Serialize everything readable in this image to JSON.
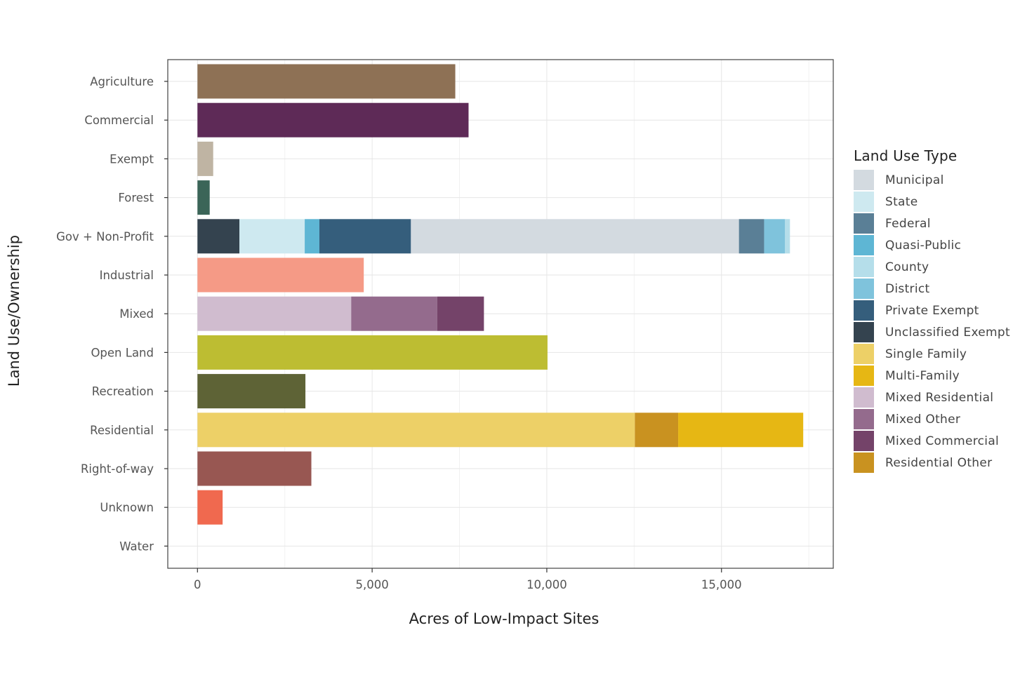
{
  "chart_data": {
    "type": "bar",
    "orientation": "horizontal",
    "stacked": true,
    "xlabel": "Acres of Low-Impact Sites",
    "ylabel": "Land Use/Ownership",
    "xlim": [
      -850,
      18200
    ],
    "xticks": [
      0,
      5000,
      10000,
      15000
    ],
    "xtick_labels": [
      "0",
      "5,000",
      "10,000",
      "15,000"
    ],
    "grid": true,
    "legend_placement": "right",
    "legend_title": "Land Use Type",
    "categories": [
      "Agriculture",
      "Commercial",
      "Exempt",
      "Forest",
      "Gov + Non-Profit",
      "Industrial",
      "Mixed",
      "Open Land",
      "Recreation",
      "Residential",
      "Right-of-way",
      "Unknown",
      "Water"
    ],
    "bars": [
      {
        "category": "Agriculture",
        "segments": [
          {
            "value": 7380,
            "color": "#8E7155"
          }
        ]
      },
      {
        "category": "Commercial",
        "segments": [
          {
            "value": 7760,
            "color": "#5E2A57"
          }
        ]
      },
      {
        "category": "Exempt",
        "segments": [
          {
            "value": 450,
            "color": "#BFB4A3"
          }
        ]
      },
      {
        "category": "Forest",
        "segments": [
          {
            "value": 350,
            "color": "#3B6558"
          }
        ]
      },
      {
        "category": "Gov + Non-Profit",
        "segments": [
          {
            "name": "Unclassified Exempt",
            "value": 1200,
            "color": "#34434F"
          },
          {
            "name": "State",
            "value": 1870,
            "color": "#CEE9F0"
          },
          {
            "name": "Quasi-Public",
            "value": 420,
            "color": "#5EB6D4"
          },
          {
            "name": "Private Exempt",
            "value": 2620,
            "color": "#355E7C"
          },
          {
            "name": "Municipal",
            "value": 9390,
            "color": "#D3DAE0"
          },
          {
            "name": "Federal",
            "value": 720,
            "color": "#5A7F96"
          },
          {
            "name": "District",
            "value": 600,
            "color": "#7FC3DC"
          },
          {
            "name": "County",
            "value": 140,
            "color": "#B5DEEA"
          }
        ]
      },
      {
        "category": "Industrial",
        "segments": [
          {
            "value": 4760,
            "color": "#F59A86"
          }
        ]
      },
      {
        "category": "Mixed",
        "segments": [
          {
            "name": "Mixed Residential",
            "value": 4400,
            "color": "#D0BCCF"
          },
          {
            "name": "Mixed Other",
            "value": 2460,
            "color": "#946B8D"
          },
          {
            "name": "Mixed Commercial",
            "value": 1340,
            "color": "#744369"
          }
        ]
      },
      {
        "category": "Open Land",
        "segments": [
          {
            "value": 10020,
            "color": "#BDBD32"
          }
        ]
      },
      {
        "category": "Recreation",
        "segments": [
          {
            "value": 3090,
            "color": "#5E6336"
          }
        ]
      },
      {
        "category": "Residential",
        "segments": [
          {
            "name": "Single Family",
            "value": 12520,
            "color": "#EDD067"
          },
          {
            "name": "Residential Other",
            "value": 1240,
            "color": "#C99220"
          },
          {
            "name": "Multi-Family",
            "value": 3580,
            "color": "#E6B714"
          }
        ]
      },
      {
        "category": "Right-of-way",
        "segments": [
          {
            "value": 3260,
            "color": "#985752"
          }
        ]
      },
      {
        "category": "Unknown",
        "segments": [
          {
            "value": 720,
            "color": "#F0694F"
          }
        ]
      },
      {
        "category": "Water",
        "segments": []
      }
    ],
    "legend": [
      {
        "label": "Municipal",
        "color": "#D3DAE0"
      },
      {
        "label": "State",
        "color": "#CEE9F0"
      },
      {
        "label": "Federal",
        "color": "#5A7F96"
      },
      {
        "label": "Quasi-Public",
        "color": "#5EB6D4"
      },
      {
        "label": "County",
        "color": "#B5DEEA"
      },
      {
        "label": "District",
        "color": "#7FC3DC"
      },
      {
        "label": "Private Exempt",
        "color": "#355E7C"
      },
      {
        "label": "Unclassified Exempt",
        "color": "#34434F"
      },
      {
        "label": "Single Family",
        "color": "#EDD067"
      },
      {
        "label": "Multi-Family",
        "color": "#E6B714"
      },
      {
        "label": "Mixed Residential",
        "color": "#D0BCCF"
      },
      {
        "label": "Mixed Other",
        "color": "#946B8D"
      },
      {
        "label": "Mixed Commercial",
        "color": "#744369"
      },
      {
        "label": "Residential Other",
        "color": "#C99220"
      }
    ]
  }
}
